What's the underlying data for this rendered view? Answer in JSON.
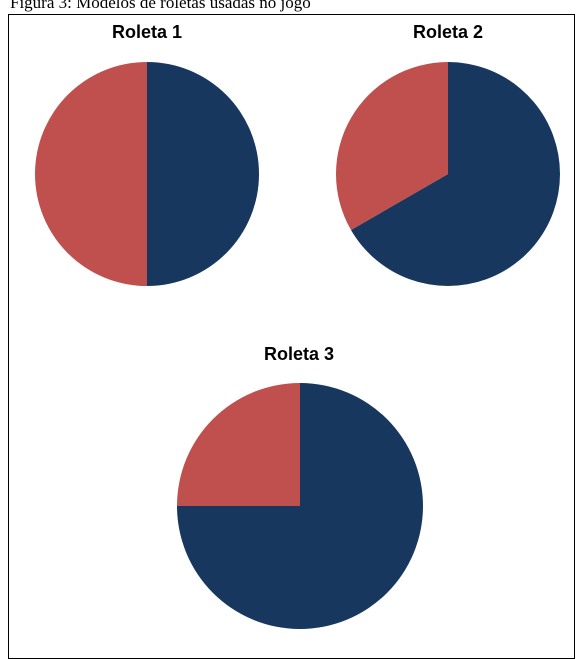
{
  "figure": {
    "caption": "Figura 3: Modelos de roletas usadas no jogo"
  },
  "colors": {
    "navy": "#17375e",
    "red": "#c0504d"
  },
  "chart_data": [
    {
      "type": "pie",
      "title": "Roleta 1",
      "start_angle_deg": 0,
      "direction": "clockwise",
      "slices": [
        {
          "fraction": 0.5,
          "color": "#17375e"
        },
        {
          "fraction": 0.5,
          "color": "#c0504d"
        }
      ]
    },
    {
      "type": "pie",
      "title": "Roleta 2",
      "start_angle_deg": 0,
      "direction": "clockwise",
      "slices": [
        {
          "fraction": 0.6667,
          "color": "#17375e"
        },
        {
          "fraction": 0.3333,
          "color": "#c0504d"
        }
      ]
    },
    {
      "type": "pie",
      "title": "Roleta 3",
      "start_angle_deg": 0,
      "direction": "clockwise",
      "slices": [
        {
          "fraction": 0.75,
          "color": "#17375e"
        },
        {
          "fraction": 0.25,
          "color": "#c0504d"
        }
      ]
    }
  ]
}
